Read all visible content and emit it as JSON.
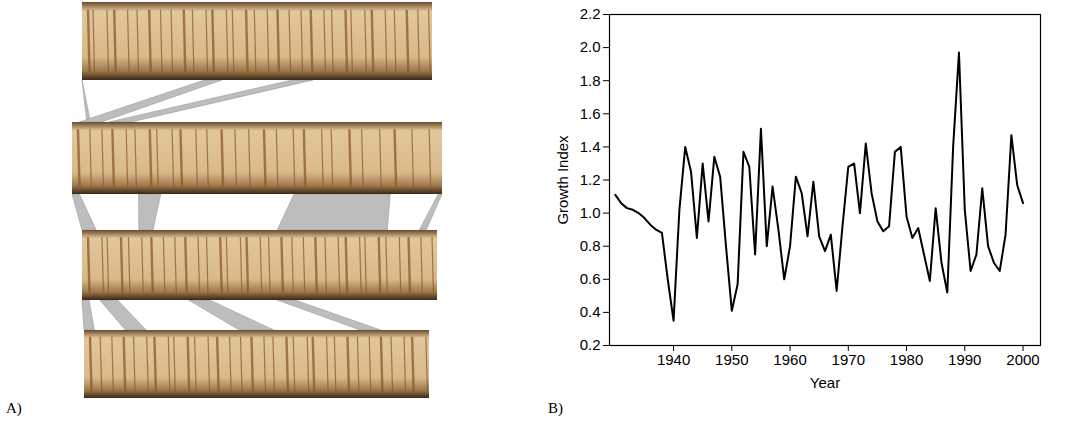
{
  "chart_data": [
    {
      "type": "image",
      "panel_label": "A)"
    },
    {
      "type": "line",
      "panel_label": "B)",
      "x_label": "Year",
      "y_label": "Growth Index",
      "x": [
        1930,
        1931,
        1932,
        1933,
        1934,
        1935,
        1936,
        1937,
        1938,
        1939,
        1940,
        1941,
        1942,
        1943,
        1944,
        1945,
        1946,
        1947,
        1948,
        1949,
        1950,
        1951,
        1952,
        1953,
        1954,
        1955,
        1956,
        1957,
        1958,
        1959,
        1960,
        1961,
        1962,
        1963,
        1964,
        1965,
        1966,
        1967,
        1968,
        1969,
        1970,
        1971,
        1972,
        1973,
        1974,
        1975,
        1976,
        1977,
        1978,
        1979,
        1980,
        1981,
        1982,
        1983,
        1984,
        1985,
        1986,
        1987,
        1988,
        1989,
        1990,
        1991,
        1992,
        1993,
        1994,
        1995,
        1996,
        1997,
        1998,
        1999,
        2000
      ],
      "values": [
        1.11,
        1.06,
        1.03,
        1.02,
        1.0,
        0.97,
        0.93,
        0.9,
        0.88,
        0.6,
        0.35,
        1.02,
        1.4,
        1.25,
        0.85,
        1.3,
        0.95,
        1.34,
        1.22,
        0.8,
        0.41,
        0.57,
        1.37,
        1.28,
        0.75,
        1.51,
        0.8,
        1.16,
        0.9,
        0.6,
        0.8,
        1.22,
        1.12,
        0.86,
        1.19,
        0.86,
        0.77,
        0.87,
        0.53,
        0.92,
        1.28,
        1.3,
        1.0,
        1.42,
        1.12,
        0.95,
        0.89,
        0.92,
        1.37,
        1.4,
        0.98,
        0.85,
        0.91,
        0.75,
        0.59,
        1.03,
        0.7,
        0.52,
        1.4,
        1.97,
        1.02,
        0.65,
        0.75,
        1.15,
        0.8,
        0.7,
        0.65,
        0.87,
        1.47,
        1.17,
        1.06
      ],
      "color": "#000000",
      "xlim": [
        1929,
        2003
      ],
      "xticks": [
        1940,
        1950,
        1960,
        1970,
        1980,
        1990,
        2000
      ],
      "ylim": [
        0.2,
        2.2
      ],
      "yticks": [
        0.2,
        0.4,
        0.6,
        0.8,
        {
          "value": 1,
          "label": "1.0"
        },
        1.2,
        1.4,
        1.6,
        1.8,
        {
          "value": 2,
          "label": "2.0"
        },
        2.2
      ]
    }
  ]
}
